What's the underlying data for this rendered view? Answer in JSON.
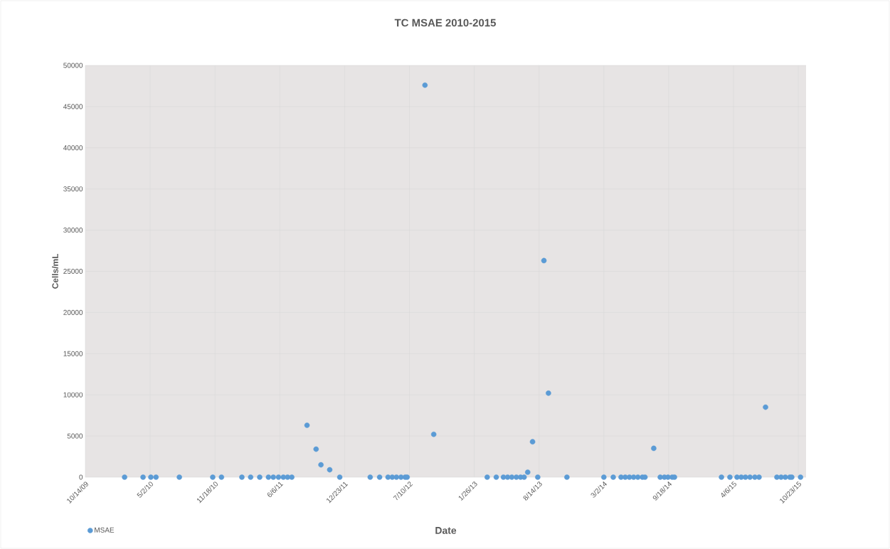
{
  "chart_data": {
    "type": "scatter",
    "title": "TC MSAE 2010-2015",
    "xlabel": "Date",
    "ylabel": "Cells/mL",
    "x": [
      "2010-02-12",
      "2010-04-10",
      "2010-05-04",
      "2010-05-20",
      "2010-07-31",
      "2010-11-11",
      "2010-12-08",
      "2011-02-09",
      "2011-03-08",
      "2011-04-05",
      "2011-05-02",
      "2011-05-17",
      "2011-06-02",
      "2011-06-17",
      "2011-06-30",
      "2011-07-13",
      "2011-08-29",
      "2011-09-26",
      "2011-10-11",
      "2011-11-07",
      "2011-12-08",
      "2012-03-11",
      "2012-04-09",
      "2012-05-05",
      "2012-05-18",
      "2012-05-31",
      "2012-06-14",
      "2012-06-27",
      "2012-07-03",
      "2012-08-27",
      "2012-09-23",
      "2013-03-07",
      "2013-04-04",
      "2013-04-26",
      "2013-05-09",
      "2013-05-22",
      "2013-06-05",
      "2013-06-18",
      "2013-06-29",
      "2013-07-10",
      "2013-07-25",
      "2013-08-10",
      "2013-08-29",
      "2013-09-12",
      "2013-11-08",
      "2014-03-02",
      "2014-03-31",
      "2014-04-24",
      "2014-05-07",
      "2014-05-20",
      "2014-06-02",
      "2014-06-15",
      "2014-06-29",
      "2014-07-07",
      "2014-08-03",
      "2014-08-23",
      "2014-09-05",
      "2014-09-16",
      "2014-09-29",
      "2014-10-06",
      "2015-02-28",
      "2015-03-26",
      "2015-04-17",
      "2015-04-30",
      "2015-05-13",
      "2015-05-27",
      "2015-06-11",
      "2015-06-24",
      "2015-07-14",
      "2015-08-18",
      "2015-08-31",
      "2015-09-13",
      "2015-09-27",
      "2015-10-03",
      "2015-10-30"
    ],
    "series": [
      {
        "name": "MSAE",
        "color": "#5b9bd5",
        "values": [
          0,
          0,
          0,
          0,
          0,
          0,
          0,
          0,
          0,
          0,
          0,
          0,
          0,
          0,
          0,
          0,
          6300,
          3400,
          1500,
          900,
          0,
          0,
          0,
          0,
          0,
          0,
          0,
          0,
          0,
          47600,
          5200,
          0,
          0,
          0,
          0,
          0,
          0,
          0,
          0,
          600,
          4300,
          0,
          26300,
          10200,
          0,
          0,
          0,
          0,
          0,
          0,
          0,
          0,
          0,
          0,
          3500,
          0,
          0,
          0,
          0,
          0,
          0,
          0,
          0,
          0,
          0,
          0,
          0,
          0,
          8500,
          0,
          0,
          0,
          0,
          0,
          0
        ]
      }
    ],
    "xlim": [
      "2009-10-14",
      "2015-11-16"
    ],
    "xticks": [
      {
        "value": "2009-10-14",
        "label": "10/14/09"
      },
      {
        "value": "2010-05-02",
        "label": "5/2/10"
      },
      {
        "value": "2010-11-18",
        "label": "11/18/10"
      },
      {
        "value": "2011-06-06",
        "label": "6/6/11"
      },
      {
        "value": "2011-12-23",
        "label": "12/23/11"
      },
      {
        "value": "2012-07-10",
        "label": "7/10/12"
      },
      {
        "value": "2013-01-26",
        "label": "1/26/13"
      },
      {
        "value": "2013-08-14",
        "label": "8/14/13"
      },
      {
        "value": "2014-03-02",
        "label": "3/2/14"
      },
      {
        "value": "2014-09-18",
        "label": "9/18/14"
      },
      {
        "value": "2015-04-06",
        "label": "4/6/15"
      },
      {
        "value": "2015-10-23",
        "label": "10/23/15"
      }
    ],
    "ylim": [
      0,
      50000
    ],
    "yticks": [
      0,
      5000,
      10000,
      15000,
      20000,
      25000,
      30000,
      35000,
      40000,
      45000,
      50000
    ],
    "grid": true,
    "legend": "bottom left",
    "marker": "circle"
  }
}
